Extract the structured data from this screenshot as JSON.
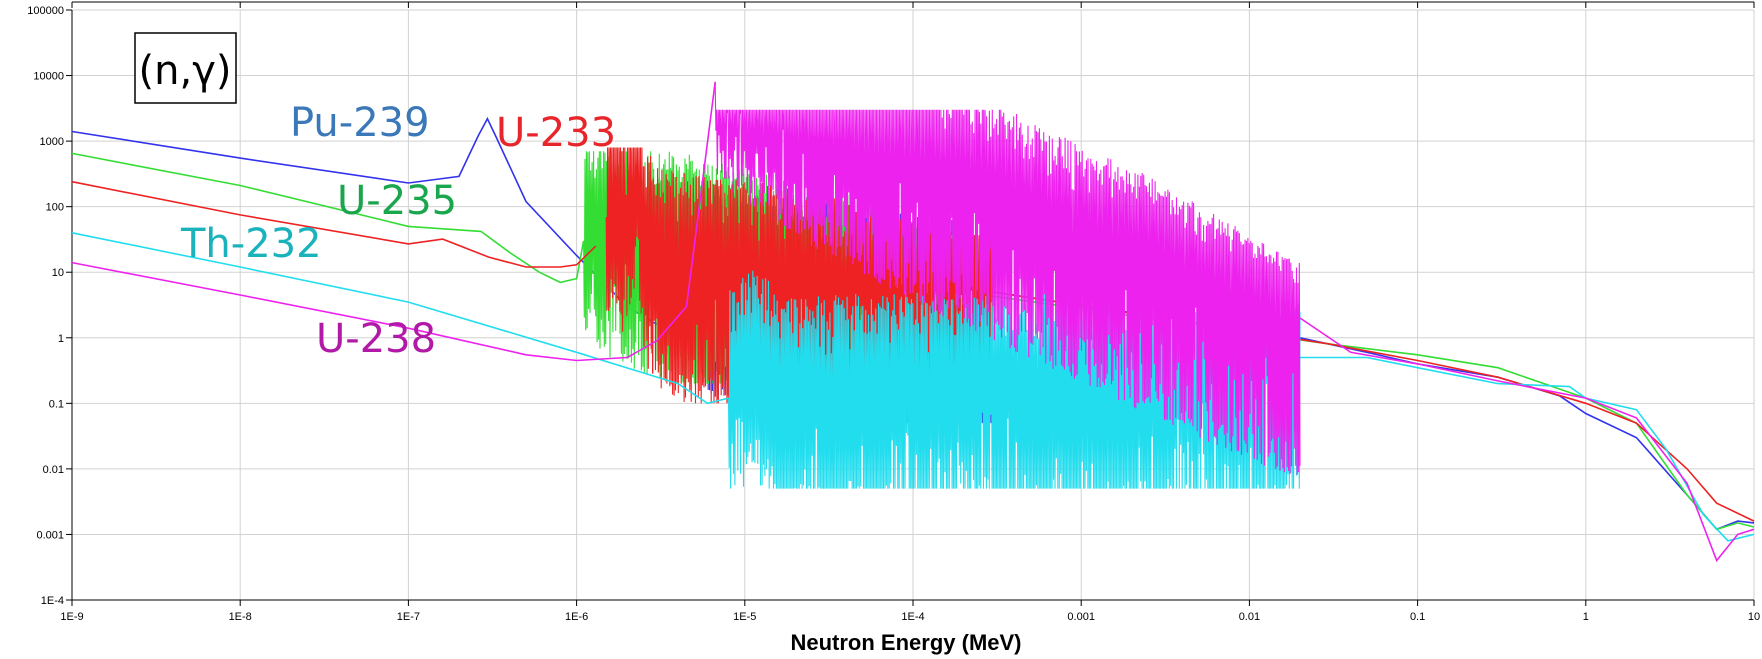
{
  "chart_data": {
    "type": "line",
    "title": "",
    "annotation": "(n,γ)",
    "xlabel": "Neutron Energy (MeV)",
    "ylabel": "",
    "x_scale": "log",
    "y_scale": "log",
    "xlim": [
      1e-09,
      10
    ],
    "ylim": [
      0.0001,
      100000
    ],
    "grid": true,
    "x_tick_values": [
      1e-09,
      1e-08,
      1e-07,
      1e-06,
      1e-05,
      0.0001,
      0.001,
      0.01,
      0.1,
      1,
      10
    ],
    "x_tick_labels": [
      "1E-9",
      "1E-8",
      "1E-7",
      "1E-6",
      "1E-5",
      "1E-4",
      "0.001",
      "0.01",
      "0.1",
      "1",
      "10"
    ],
    "y_tick_values": [
      100000,
      10000,
      1000,
      100,
      10,
      1,
      0.1,
      0.01,
      0.001,
      0.0001
    ],
    "y_tick_labels": [
      "100000",
      "10000",
      "1000",
      "100",
      "10",
      "1",
      "0.1",
      "0.01",
      "0.001",
      "1E-4"
    ],
    "series": [
      {
        "name": "Pu-239",
        "color": "#3333ee",
        "label_color": "#3a78b8",
        "resonance_region": [
          6e-06,
          0.0003
        ],
        "resonance_band": [
          0.05,
          1500
        ],
        "points": [
          [
            1e-09,
            1400
          ],
          [
            1e-08,
            550
          ],
          [
            1e-07,
            230
          ],
          [
            2e-07,
            290
          ],
          [
            2.6e-07,
            1200
          ],
          [
            2.95e-07,
            2200
          ],
          [
            3.3e-07,
            1200
          ],
          [
            5e-07,
            120
          ],
          [
            1e-06,
            18
          ],
          [
            2e-06,
            3
          ],
          [
            3e-06,
            1.6
          ],
          [
            4e-06,
            1.0
          ],
          [
            5e-06,
            1.1
          ],
          [
            6e-06,
            5
          ],
          [
            0.0003,
            5
          ],
          [
            0.02,
            1.0
          ],
          [
            0.05,
            0.6
          ],
          [
            0.1,
            0.4
          ],
          [
            0.3,
            0.25
          ],
          [
            0.7,
            0.13
          ],
          [
            1,
            0.07
          ],
          [
            2,
            0.03
          ],
          [
            4,
            0.004
          ],
          [
            6,
            0.0012
          ],
          [
            8,
            0.0016
          ],
          [
            10,
            0.0015
          ]
        ]
      },
      {
        "name": "U-235",
        "color": "#33dd33",
        "label_color": "#1aa64c",
        "resonance_region": [
          1.1e-06,
          0.0002
        ],
        "resonance_band": [
          0.2,
          700
        ],
        "points": [
          [
            1e-09,
            650
          ],
          [
            1e-08,
            210
          ],
          [
            1e-07,
            50
          ],
          [
            2.7e-07,
            42
          ],
          [
            4e-07,
            20
          ],
          [
            6e-07,
            10
          ],
          [
            8e-07,
            7
          ],
          [
            1e-06,
            8
          ],
          [
            1.1e-06,
            30
          ],
          [
            0.0002,
            5
          ],
          [
            0.03,
            0.8
          ],
          [
            0.1,
            0.55
          ],
          [
            0.3,
            0.35
          ],
          [
            1,
            0.12
          ],
          [
            2,
            0.05
          ],
          [
            4,
            0.004
          ],
          [
            6,
            0.0012
          ],
          [
            8,
            0.0015
          ],
          [
            10,
            0.0013
          ]
        ]
      },
      {
        "name": "U-233",
        "color": "#ee2222",
        "label_color": "#e8252a",
        "resonance_region": [
          1.5e-06,
          0.0003
        ],
        "resonance_band": [
          0.1,
          800
        ],
        "points": [
          [
            1e-09,
            240
          ],
          [
            1e-08,
            75
          ],
          [
            1e-07,
            27
          ],
          [
            1.6e-07,
            32
          ],
          [
            3e-07,
            17
          ],
          [
            5e-07,
            12
          ],
          [
            8e-07,
            12
          ],
          [
            1e-06,
            13
          ],
          [
            1.3e-06,
            25
          ],
          [
            1.7e-06,
            170
          ],
          [
            2e-06,
            25
          ],
          [
            2.3e-06,
            450
          ],
          [
            2.6e-06,
            20
          ],
          [
            3e-06,
            10
          ],
          [
            0.0003,
            5
          ],
          [
            0.03,
            0.8
          ],
          [
            0.1,
            0.45
          ],
          [
            0.3,
            0.25
          ],
          [
            1,
            0.1
          ],
          [
            2,
            0.05
          ],
          [
            4,
            0.01
          ],
          [
            6,
            0.003
          ],
          [
            10,
            0.0016
          ]
        ]
      },
      {
        "name": "Th-232",
        "color": "#22ddee",
        "label_color": "#1bb3bb",
        "resonance_region": [
          8e-06,
          0.02
        ],
        "resonance_band": [
          0.005,
          150
        ],
        "points": [
          [
            1e-09,
            40
          ],
          [
            1e-08,
            12
          ],
          [
            1e-07,
            3.5
          ],
          [
            1e-06,
            0.6
          ],
          [
            4e-06,
            0.2
          ],
          [
            6e-06,
            0.1
          ],
          [
            8e-06,
            0.12
          ],
          [
            1.2e-05,
            0.3
          ],
          [
            1.6e-05,
            0.1
          ],
          [
            0.02,
            0.5
          ],
          [
            0.05,
            0.5
          ],
          [
            0.1,
            0.35
          ],
          [
            0.3,
            0.2
          ],
          [
            0.8,
            0.18
          ],
          [
            1,
            0.12
          ],
          [
            2,
            0.08
          ],
          [
            3,
            0.02
          ],
          [
            5,
            0.002
          ],
          [
            7,
            0.0008
          ],
          [
            10,
            0.001
          ]
        ]
      },
      {
        "name": "U-238",
        "color": "#ee22ee",
        "label_color": "#b01aa6",
        "resonance_region": [
          6.67e-06,
          0.02
        ],
        "resonance_band": [
          0.001,
          3000
        ],
        "points": [
          [
            1e-09,
            14
          ],
          [
            1e-08,
            4.5
          ],
          [
            1e-07,
            1.4
          ],
          [
            5e-07,
            0.55
          ],
          [
            1e-06,
            0.45
          ],
          [
            2e-06,
            0.5
          ],
          [
            3e-06,
            0.9
          ],
          [
            4.5e-06,
            3
          ],
          [
            6.67e-06,
            8000
          ],
          [
            0.02,
            2.0
          ],
          [
            0.04,
            0.6
          ],
          [
            0.1,
            0.4
          ],
          [
            0.3,
            0.22
          ],
          [
            1,
            0.12
          ],
          [
            2,
            0.06
          ],
          [
            4,
            0.006
          ],
          [
            6,
            0.0004
          ],
          [
            8,
            0.001
          ],
          [
            10,
            0.0012
          ]
        ]
      }
    ]
  }
}
